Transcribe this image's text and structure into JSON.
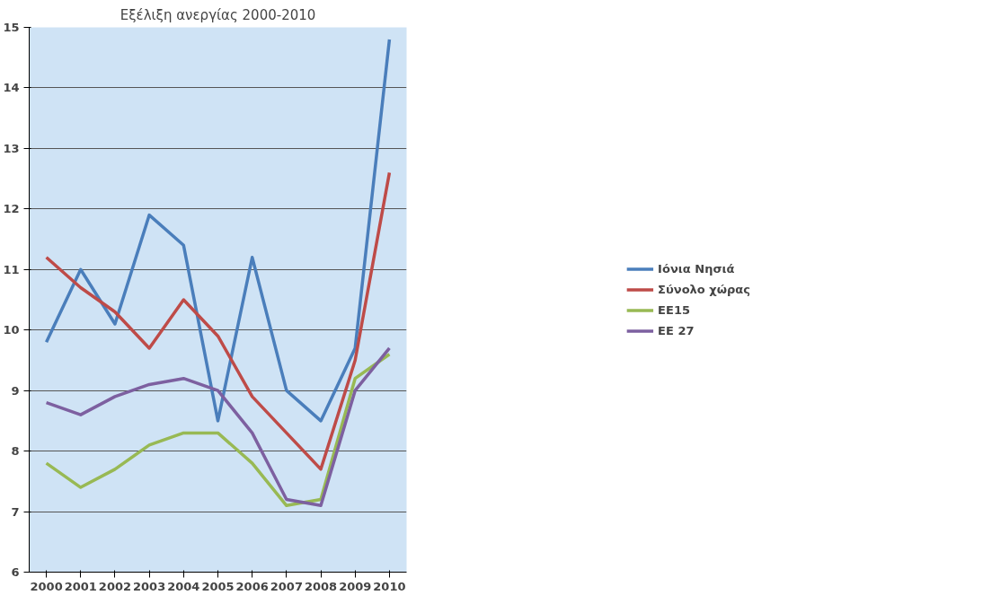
{
  "chart_data": {
    "type": "line",
    "title": "Εξέλιξη ανεργίας 2000-2010",
    "categories": [
      "2000",
      "2001",
      "2002",
      "2003",
      "2004",
      "2005",
      "2006",
      "2007",
      "2008",
      "2009",
      "2010"
    ],
    "series": [
      {
        "name": "Ιόνια Νησιά",
        "color": "#4a7ebb",
        "values": [
          9.8,
          11.0,
          10.1,
          11.9,
          11.4,
          8.5,
          11.2,
          9.0,
          8.5,
          9.7,
          14.8
        ]
      },
      {
        "name": "Σύνολο χώρας",
        "color": "#be4b48",
        "values": [
          11.2,
          10.7,
          10.3,
          9.7,
          10.5,
          9.9,
          8.9,
          8.3,
          7.7,
          9.5,
          12.6
        ]
      },
      {
        "name": "ΕΕ15",
        "color": "#98b954",
        "values": [
          7.8,
          7.4,
          7.7,
          8.1,
          8.3,
          8.3,
          7.8,
          7.1,
          7.2,
          9.2,
          9.6
        ]
      },
      {
        "name": "ΕΕ 27",
        "color": "#7d60a0",
        "values": [
          8.8,
          8.6,
          8.9,
          9.1,
          9.2,
          9.0,
          8.3,
          7.2,
          7.1,
          9.0,
          9.7
        ]
      }
    ],
    "ylim": [
      6,
      15
    ],
    "yticks": [
      6,
      7,
      8,
      9,
      10,
      11,
      12,
      13,
      14,
      15
    ],
    "grid": "y",
    "legend": "right",
    "marker": "none",
    "line_style": "solid"
  }
}
